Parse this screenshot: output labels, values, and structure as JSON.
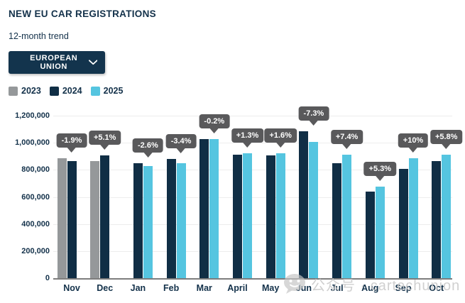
{
  "page": {
    "title": "NEW EU CAR REGISTRATIONS",
    "subtitle": "12-month trend",
    "dropdown": {
      "label": "EUROPEAN UNION",
      "icon": "chevron-down-icon"
    }
  },
  "watermark": {
    "icon": "wechat-official-account-icon",
    "text": "公众号 · cartechunion"
  },
  "chart_data": {
    "type": "bar",
    "title": "NEW EU CAR REGISTRATIONS",
    "subtitle": "12-month trend",
    "region_filter": "EUROPEAN UNION",
    "categories": [
      "Nov",
      "Dec",
      "Jan",
      "Feb",
      "Mar",
      "April",
      "May",
      "Jun",
      "Jul",
      "Aug",
      "Sep",
      "Oct"
    ],
    "series": [
      {
        "name": "2023",
        "color": "#95989a",
        "values": [
          886000,
          867000,
          null,
          null,
          null,
          null,
          null,
          null,
          null,
          null,
          null,
          null
        ]
      },
      {
        "name": "2024",
        "color": "#102e45",
        "values": [
          869000,
          911000,
          852000,
          884000,
          1031000,
          913000,
          911000,
          1089000,
          852000,
          644000,
          809000,
          866000
        ]
      },
      {
        "name": "2025",
        "color": "#55c5e0",
        "values": [
          null,
          null,
          831000,
          854000,
          1029000,
          925000,
          926000,
          1010000,
          915000,
          678000,
          889000,
          916000
        ]
      }
    ],
    "change_labels": [
      "-1.9%",
      "+5.1%",
      "-2.6%",
      "-3.4%",
      "-0.2%",
      "+1.3%",
      "+1.6%",
      "-7.3%",
      "+7.4%",
      "+5.3%",
      "+10%",
      "+5.8%"
    ],
    "xlabel": "",
    "ylabel": "",
    "ylim": [
      0,
      1200000
    ],
    "yticks": [
      0,
      200000,
      400000,
      600000,
      800000,
      1000000,
      1200000
    ],
    "grid": "horizontal",
    "legend_position": "top-left",
    "colors": {
      "text_navy": "#13314a",
      "button_navy": "#13344d",
      "tooltip_bg": "#59595b",
      "gridline": "#ededed",
      "axis_line": "#7d7d7d",
      "watermark_gray": "#c8c8c8"
    }
  }
}
